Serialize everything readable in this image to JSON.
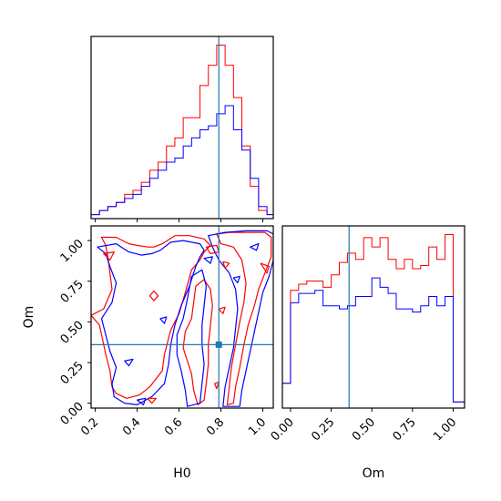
{
  "chart_data": {
    "type": "corner",
    "parameters": [
      "H0",
      "Om"
    ],
    "truths": {
      "H0": 0.79,
      "Om": 0.36
    },
    "colors": {
      "series_a": "#ff0000",
      "series_b": "#0000ff",
      "truth": "#1f77b4"
    },
    "panels": {
      "h0_hist": {
        "type": "step",
        "xlim": [
          0.18,
          1.05
        ],
        "bin_edges": [
          0.18,
          0.22,
          0.26,
          0.3,
          0.34,
          0.38,
          0.42,
          0.46,
          0.5,
          0.54,
          0.58,
          0.62,
          0.66,
          0.7,
          0.74,
          0.78,
          0.82,
          0.86,
          0.9,
          0.94,
          0.98,
          1.02,
          1.05
        ],
        "series": [
          {
            "values": [
              1,
              2,
              3,
              4,
              6,
              7,
              9,
              12,
              14,
              18,
              20,
              25,
              25,
              33,
              38,
              43,
              38,
              30,
              18,
              8,
              2,
              1
            ]
          },
          {
            "values": [
              1,
              2,
              3,
              4,
              5,
              6,
              8,
              10,
              12,
              14,
              15,
              18,
              20,
              22,
              23,
              26,
              28,
              22,
              17,
              10,
              3,
              1
            ]
          }
        ]
      },
      "om_hist": {
        "type": "step",
        "xlim": [
          -0.05,
          1.07
        ],
        "bin_edges": [
          -0.05,
          0.0,
          0.05,
          0.1,
          0.15,
          0.2,
          0.25,
          0.3,
          0.35,
          0.4,
          0.45,
          0.5,
          0.55,
          0.6,
          0.65,
          0.7,
          0.75,
          0.8,
          0.85,
          0.9,
          0.95,
          1.0,
          1.07
        ],
        "series": [
          {
            "values": [
              8,
              38,
              40,
              41,
              41,
              39,
              43,
              47,
              50,
              48,
              55,
              52,
              55,
              48,
              45,
              48,
              45,
              46,
              52,
              48,
              56,
              2
            ]
          },
          {
            "values": [
              8,
              34,
              37,
              37,
              38,
              33,
              33,
              32,
              33,
              36,
              36,
              42,
              39,
              37,
              32,
              32,
              31,
              33,
              36,
              33,
              36,
              2
            ]
          }
        ]
      },
      "contour": {
        "xlabel": "H0",
        "ylabel": "Om",
        "xlim": [
          0.18,
          1.05
        ],
        "ylim": [
          -0.03,
          1.09
        ]
      }
    },
    "ticks": {
      "H0": [
        0.2,
        0.4,
        0.6,
        0.8,
        1.0
      ],
      "Om": [
        0.0,
        0.25,
        0.5,
        0.75,
        1.0
      ]
    },
    "tick_labels": {
      "H0": [
        "0.2",
        "0.4",
        "0.6",
        "0.8",
        "1.0"
      ],
      "Om": [
        "0.00",
        "0.25",
        "0.50",
        "0.75",
        "1.00"
      ]
    },
    "contours": [
      {
        "series": 0,
        "points": [
          [
            0.23,
            1.02
          ],
          [
            0.3,
            1.02
          ],
          [
            0.36,
            0.98
          ],
          [
            0.4,
            0.97
          ],
          [
            0.45,
            0.96
          ],
          [
            0.48,
            0.96
          ],
          [
            0.52,
            0.98
          ],
          [
            0.58,
            1.03
          ],
          [
            0.65,
            1.03
          ],
          [
            0.72,
            1.01
          ],
          [
            0.75,
            0.97
          ],
          [
            0.72,
            0.93
          ],
          [
            0.7,
            0.88
          ],
          [
            0.66,
            0.82
          ],
          [
            0.63,
            0.68
          ],
          [
            0.6,
            0.55
          ],
          [
            0.56,
            0.45
          ],
          [
            0.53,
            0.3
          ],
          [
            0.52,
            0.2
          ],
          [
            0.46,
            0.1
          ],
          [
            0.41,
            0.05
          ],
          [
            0.35,
            0.03
          ],
          [
            0.3,
            0.06
          ],
          [
            0.28,
            0.1
          ],
          [
            0.27,
            0.2
          ],
          [
            0.25,
            0.3
          ],
          [
            0.24,
            0.36
          ],
          [
            0.22,
            0.48
          ],
          [
            0.18,
            0.54
          ],
          [
            0.24,
            0.58
          ],
          [
            0.28,
            0.7
          ],
          [
            0.27,
            0.8
          ],
          [
            0.26,
            0.9
          ],
          [
            0.25,
            0.97
          ],
          [
            0.23,
            1.02
          ]
        ]
      },
      {
        "series": 1,
        "points": [
          [
            0.21,
            0.96
          ],
          [
            0.3,
            0.98
          ],
          [
            0.36,
            0.93
          ],
          [
            0.42,
            0.91
          ],
          [
            0.47,
            0.92
          ],
          [
            0.51,
            0.94
          ],
          [
            0.56,
            0.99
          ],
          [
            0.62,
            1.0
          ],
          [
            0.7,
            0.98
          ],
          [
            0.72,
            0.94
          ],
          [
            0.7,
            0.9
          ],
          [
            0.68,
            0.84
          ],
          [
            0.65,
            0.72
          ],
          [
            0.61,
            0.6
          ],
          [
            0.58,
            0.48
          ],
          [
            0.56,
            0.36
          ],
          [
            0.55,
            0.24
          ],
          [
            0.53,
            0.12
          ],
          [
            0.47,
            0.04
          ],
          [
            0.4,
            -0.01
          ],
          [
            0.34,
            0.0
          ],
          [
            0.29,
            0.04
          ],
          [
            0.28,
            0.12
          ],
          [
            0.3,
            0.22
          ],
          [
            0.27,
            0.32
          ],
          [
            0.25,
            0.42
          ],
          [
            0.23,
            0.52
          ],
          [
            0.28,
            0.62
          ],
          [
            0.3,
            0.74
          ],
          [
            0.27,
            0.84
          ],
          [
            0.25,
            0.92
          ],
          [
            0.21,
            0.96
          ]
        ]
      },
      {
        "series": 0,
        "points": [
          [
            0.78,
            1.04
          ],
          [
            0.84,
            1.05
          ],
          [
            0.93,
            1.05
          ],
          [
            1.01,
            1.05
          ],
          [
            1.04,
            1.02
          ],
          [
            1.04,
            0.9
          ],
          [
            1.01,
            0.8
          ],
          [
            0.98,
            0.7
          ],
          [
            0.96,
            0.6
          ],
          [
            0.93,
            0.48
          ],
          [
            0.91,
            0.36
          ],
          [
            0.89,
            0.22
          ],
          [
            0.87,
            0.1
          ],
          [
            0.86,
            0.0
          ],
          [
            0.83,
            -0.01
          ],
          [
            0.84,
            0.1
          ],
          [
            0.85,
            0.22
          ],
          [
            0.87,
            0.36
          ],
          [
            0.89,
            0.5
          ],
          [
            0.91,
            0.62
          ],
          [
            0.92,
            0.74
          ],
          [
            0.9,
            0.88
          ],
          [
            0.86,
            0.96
          ],
          [
            0.8,
            0.98
          ],
          [
            0.78,
            1.04
          ]
        ]
      },
      {
        "series": 1,
        "points": [
          [
            0.74,
            1.03
          ],
          [
            0.82,
            1.05
          ],
          [
            0.92,
            1.06
          ],
          [
            1.02,
            1.06
          ],
          [
            1.05,
            1.04
          ],
          [
            1.05,
            0.88
          ],
          [
            1.03,
            0.78
          ],
          [
            1.0,
            0.68
          ],
          [
            0.98,
            0.56
          ],
          [
            0.96,
            0.44
          ],
          [
            0.94,
            0.32
          ],
          [
            0.92,
            0.2
          ],
          [
            0.9,
            0.08
          ],
          [
            0.89,
            -0.02
          ],
          [
            0.81,
            -0.02
          ],
          [
            0.82,
            0.1
          ],
          [
            0.84,
            0.22
          ],
          [
            0.86,
            0.34
          ],
          [
            0.87,
            0.46
          ],
          [
            0.88,
            0.58
          ],
          [
            0.87,
            0.7
          ],
          [
            0.84,
            0.8
          ],
          [
            0.79,
            0.88
          ],
          [
            0.76,
            0.96
          ],
          [
            0.74,
            1.03
          ]
        ]
      },
      {
        "series": 0,
        "points": [
          [
            0.68,
            0.72
          ],
          [
            0.72,
            0.76
          ],
          [
            0.75,
            0.7
          ],
          [
            0.76,
            0.6
          ],
          [
            0.75,
            0.48
          ],
          [
            0.74,
            0.36
          ],
          [
            0.74,
            0.24
          ],
          [
            0.73,
            0.12
          ],
          [
            0.72,
            0.02
          ],
          [
            0.69,
            -0.01
          ],
          [
            0.67,
            0.08
          ],
          [
            0.66,
            0.18
          ],
          [
            0.64,
            0.26
          ],
          [
            0.62,
            0.34
          ],
          [
            0.63,
            0.44
          ],
          [
            0.66,
            0.52
          ],
          [
            0.67,
            0.62
          ],
          [
            0.68,
            0.72
          ]
        ]
      },
      {
        "series": 1,
        "points": [
          [
            0.66,
            0.78
          ],
          [
            0.71,
            0.82
          ],
          [
            0.73,
            0.72
          ],
          [
            0.72,
            0.6
          ],
          [
            0.71,
            0.48
          ],
          [
            0.71,
            0.36
          ],
          [
            0.72,
            0.24
          ],
          [
            0.71,
            0.12
          ],
          [
            0.7,
            0.0
          ],
          [
            0.64,
            -0.02
          ],
          [
            0.63,
            0.08
          ],
          [
            0.61,
            0.2
          ],
          [
            0.59,
            0.3
          ],
          [
            0.59,
            0.42
          ],
          [
            0.62,
            0.52
          ],
          [
            0.64,
            0.64
          ],
          [
            0.66,
            0.78
          ]
        ]
      },
      {
        "series": 0,
        "points": [
          [
            0.73,
            0.96
          ],
          [
            0.75,
            0.92
          ],
          [
            0.79,
            0.93
          ],
          [
            0.78,
            0.97
          ],
          [
            0.73,
            0.96
          ]
        ]
      },
      {
        "series": 1,
        "points": [
          [
            0.72,
            0.89
          ],
          [
            0.75,
            0.86
          ],
          [
            0.76,
            0.9
          ],
          [
            0.72,
            0.89
          ]
        ]
      },
      {
        "series": 0,
        "points": [
          [
            0.81,
            0.87
          ],
          [
            0.82,
            0.83
          ],
          [
            0.84,
            0.86
          ],
          [
            0.81,
            0.87
          ]
        ]
      },
      {
        "series": 1,
        "points": [
          [
            0.86,
            0.77
          ],
          [
            0.88,
            0.74
          ],
          [
            0.89,
            0.78
          ],
          [
            0.86,
            0.77
          ]
        ]
      },
      {
        "series": 0,
        "points": [
          [
            0.24,
            0.92
          ],
          [
            0.27,
            0.88
          ],
          [
            0.29,
            0.93
          ],
          [
            0.24,
            0.92
          ]
        ]
      },
      {
        "series": 0,
        "points": [
          [
            0.46,
            0.66
          ],
          [
            0.48,
            0.63
          ],
          [
            0.5,
            0.66
          ],
          [
            0.48,
            0.69
          ],
          [
            0.46,
            0.66
          ]
        ]
      },
      {
        "series": 1,
        "points": [
          [
            0.51,
            0.52
          ],
          [
            0.53,
            0.49
          ],
          [
            0.54,
            0.53
          ],
          [
            0.51,
            0.52
          ]
        ]
      },
      {
        "series": 1,
        "points": [
          [
            0.34,
            0.26
          ],
          [
            0.36,
            0.23
          ],
          [
            0.38,
            0.27
          ],
          [
            0.34,
            0.26
          ]
        ]
      },
      {
        "series": 0,
        "points": [
          [
            0.77,
            0.12
          ],
          [
            0.78,
            0.09
          ],
          [
            0.79,
            0.13
          ],
          [
            0.77,
            0.12
          ]
        ]
      },
      {
        "series": 0,
        "points": [
          [
            0.45,
            0.03
          ],
          [
            0.47,
            0.0
          ],
          [
            0.49,
            0.03
          ],
          [
            0.45,
            0.03
          ]
        ]
      },
      {
        "series": 1,
        "points": [
          [
            0.4,
            0.02
          ],
          [
            0.43,
            -0.01
          ],
          [
            0.44,
            0.03
          ],
          [
            0.4,
            0.02
          ]
        ]
      },
      {
        "series": 0,
        "points": [
          [
            0.79,
            0.58
          ],
          [
            0.81,
            0.55
          ],
          [
            0.82,
            0.59
          ],
          [
            0.79,
            0.58
          ]
        ]
      },
      {
        "series": 0,
        "points": [
          [
            0.99,
            0.86
          ],
          [
            1.02,
            0.8
          ],
          [
            1.03,
            0.84
          ],
          [
            0.99,
            0.86
          ]
        ]
      },
      {
        "series": 1,
        "points": [
          [
            0.94,
            0.96
          ],
          [
            0.97,
            0.94
          ],
          [
            0.98,
            0.98
          ],
          [
            0.94,
            0.96
          ]
        ]
      }
    ]
  }
}
